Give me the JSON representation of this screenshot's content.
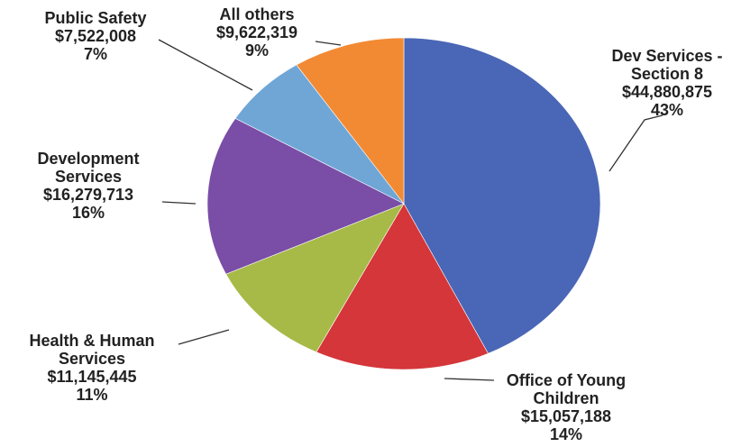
{
  "chart_data": {
    "type": "pie",
    "title": "",
    "start_angle_deg": 0,
    "direction": "clockwise",
    "slices": [
      {
        "label_lines": [
          "Dev Services -",
          "Section 8"
        ],
        "amount": "$44,880,875",
        "percent_label": "43%",
        "value": 44880875,
        "color": "#4a66b6"
      },
      {
        "label_lines": [
          "Office of Young",
          "Children"
        ],
        "amount": "$15,057,188",
        "percent_label": "14%",
        "value": 15057188,
        "color": "#d4363a"
      },
      {
        "label_lines": [
          "Health & Human",
          "Services"
        ],
        "amount": "$11,145,445",
        "percent_label": "11%",
        "value": 11145445,
        "color": "#a7ba48"
      },
      {
        "label_lines": [
          "Development",
          "Services"
        ],
        "amount": "$16,279,713",
        "percent_label": "16%",
        "value": 16279713,
        "color": "#7a4da6"
      },
      {
        "label_lines": [
          "Public Safety"
        ],
        "amount": "$7,522,008",
        "percent_label": "7%",
        "value": 7522008,
        "color": "#6fa6d6"
      },
      {
        "label_lines": [
          "All others"
        ],
        "amount": "$9,622,319",
        "percent_label": "9%",
        "value": 9622319,
        "color": "#f28a34"
      }
    ]
  }
}
